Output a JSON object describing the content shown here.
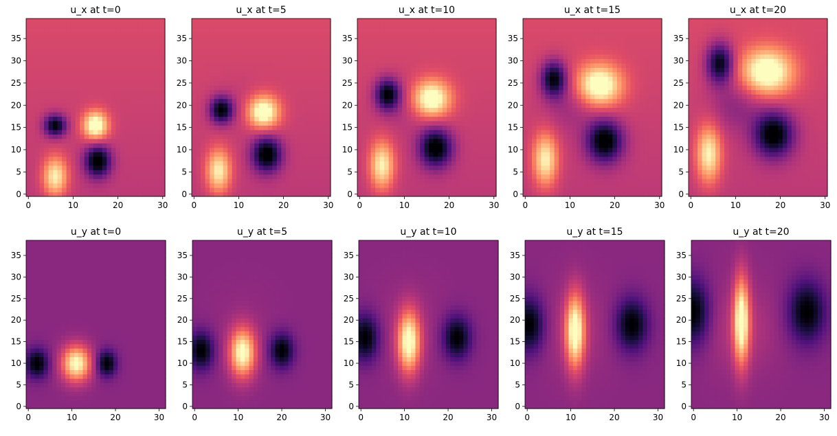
{
  "colormap": "magma",
  "chart_data": [
    {
      "type": "heatmap",
      "title": "u_x at t=0",
      "field": "u_x",
      "t": 0,
      "xlim": [
        -0.5,
        30.5
      ],
      "ylim": [
        -0.5,
        39.5
      ],
      "xticks": [
        0,
        10,
        20,
        30
      ],
      "yticks": [
        0,
        5,
        10,
        15,
        20,
        25,
        30,
        35
      ]
    },
    {
      "type": "heatmap",
      "title": "u_x at t=5",
      "field": "u_x",
      "t": 5,
      "xlim": [
        -0.5,
        30.5
      ],
      "ylim": [
        -0.5,
        39.5
      ],
      "xticks": [
        0,
        10,
        20,
        30
      ],
      "yticks": [
        0,
        5,
        10,
        15,
        20,
        25,
        30,
        35
      ]
    },
    {
      "type": "heatmap",
      "title": "u_x at t=10",
      "field": "u_x",
      "t": 10,
      "xlim": [
        -0.5,
        30.5
      ],
      "ylim": [
        -0.5,
        39.5
      ],
      "xticks": [
        0,
        10,
        20,
        30
      ],
      "yticks": [
        0,
        5,
        10,
        15,
        20,
        25,
        30,
        35
      ]
    },
    {
      "type": "heatmap",
      "title": "u_x at t=15",
      "field": "u_x",
      "t": 15,
      "xlim": [
        -0.5,
        30.5
      ],
      "ylim": [
        -0.5,
        39.5
      ],
      "xticks": [
        0,
        10,
        20,
        30
      ],
      "yticks": [
        0,
        5,
        10,
        15,
        20,
        25,
        30,
        35
      ]
    },
    {
      "type": "heatmap",
      "title": "u_x at t=20",
      "field": "u_x",
      "t": 20,
      "xlim": [
        -0.5,
        30.5
      ],
      "ylim": [
        -0.5,
        39.5
      ],
      "xticks": [
        0,
        10,
        20,
        30
      ],
      "yticks": [
        0,
        5,
        10,
        15,
        20,
        25,
        30,
        35
      ]
    },
    {
      "type": "heatmap",
      "title": "u_y at t=0",
      "field": "u_y",
      "t": 0,
      "xlim": [
        -0.5,
        31.5
      ],
      "ylim": [
        -0.5,
        38.5
      ],
      "xticks": [
        0,
        10,
        20,
        30
      ],
      "yticks": [
        0,
        5,
        10,
        15,
        20,
        25,
        30,
        35
      ]
    },
    {
      "type": "heatmap",
      "title": "u_y at t=5",
      "field": "u_y",
      "t": 5,
      "xlim": [
        -0.5,
        31.5
      ],
      "ylim": [
        -0.5,
        38.5
      ],
      "xticks": [
        0,
        10,
        20,
        30
      ],
      "yticks": [
        0,
        5,
        10,
        15,
        20,
        25,
        30,
        35
      ]
    },
    {
      "type": "heatmap",
      "title": "u_y at t=10",
      "field": "u_y",
      "t": 10,
      "xlim": [
        -0.5,
        31.5
      ],
      "ylim": [
        -0.5,
        38.5
      ],
      "xticks": [
        0,
        10,
        20,
        30
      ],
      "yticks": [
        0,
        5,
        10,
        15,
        20,
        25,
        30,
        35
      ]
    },
    {
      "type": "heatmap",
      "title": "u_y at t=15",
      "field": "u_y",
      "t": 15,
      "xlim": [
        -0.5,
        31.5
      ],
      "ylim": [
        -0.5,
        38.5
      ],
      "xticks": [
        0,
        10,
        20,
        30
      ],
      "yticks": [
        0,
        5,
        10,
        15,
        20,
        25,
        30,
        35
      ]
    },
    {
      "type": "heatmap",
      "title": "u_y at t=20",
      "field": "u_y",
      "t": 20,
      "xlim": [
        -0.5,
        31.5
      ],
      "ylim": [
        -0.5,
        38.5
      ],
      "xticks": [
        0,
        10,
        20,
        30
      ],
      "yticks": [
        0,
        5,
        10,
        15,
        20,
        25,
        30,
        35
      ]
    }
  ]
}
